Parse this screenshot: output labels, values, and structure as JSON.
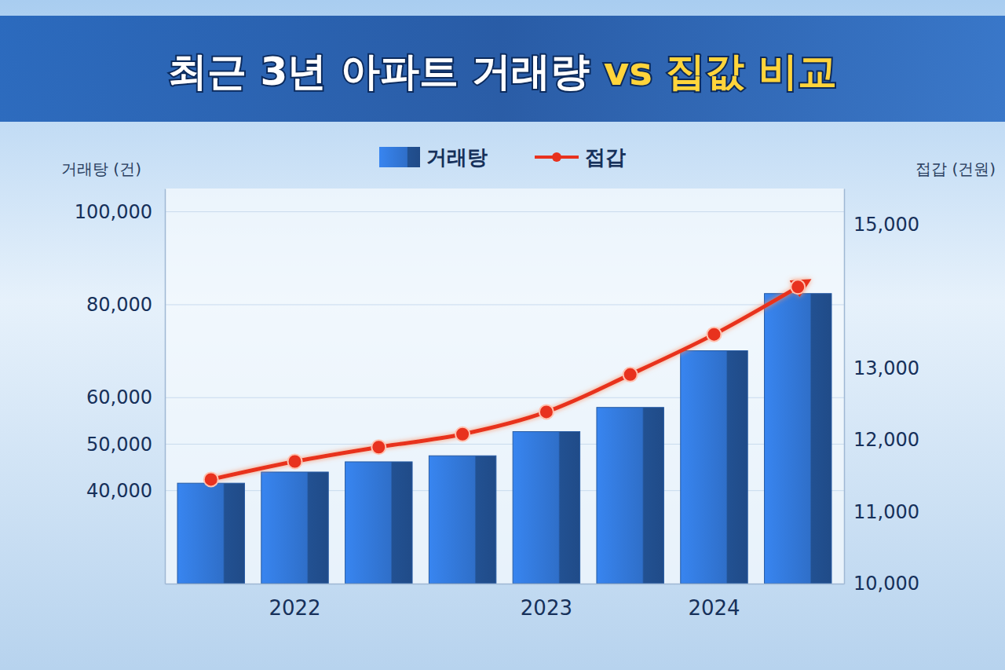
{
  "chart_data": {
    "type": "bar",
    "title": "최근 3년 아파트 거래량 vs 집값 비교",
    "ylabel": "거래탕 (건)",
    "y2label": "접갑 (건원)",
    "categories": [
      null,
      "2022",
      null,
      null,
      "2023",
      null,
      "2024",
      null
    ],
    "series": [
      {
        "name": "거래탕",
        "type": "bar",
        "color": "#2f6fc9",
        "values": [
          41600,
          44000,
          46200,
          47500,
          52700,
          57900,
          70100,
          82400
        ]
      },
      {
        "name": "접갑",
        "type": "line",
        "axis": "y2",
        "color": "#e8321e",
        "marker": "circle",
        "values": [
          11450,
          11700,
          11900,
          12080,
          12390,
          12910,
          13470,
          14130
        ]
      }
    ],
    "ylim": [
      20000,
      105000
    ],
    "yticks": [
      {
        "value": 40000,
        "label": "40,000"
      },
      {
        "value": 50000,
        "label": "50,000"
      },
      {
        "value": 60000,
        "label": "60,000"
      },
      {
        "value": 80000,
        "label": "80,000"
      },
      {
        "value": 100000,
        "label": "100,000"
      }
    ],
    "y2lim": [
      10000,
      15500
    ],
    "y2ticks": [
      {
        "value": 10000,
        "label": "10,000"
      },
      {
        "value": 11000,
        "label": "11,000"
      },
      {
        "value": 12000,
        "label": "12,000"
      },
      {
        "value": 13000,
        "label": "13,000"
      },
      {
        "value": 15000,
        "label": "15,000"
      }
    ],
    "grid": true,
    "legend": "top"
  }
}
